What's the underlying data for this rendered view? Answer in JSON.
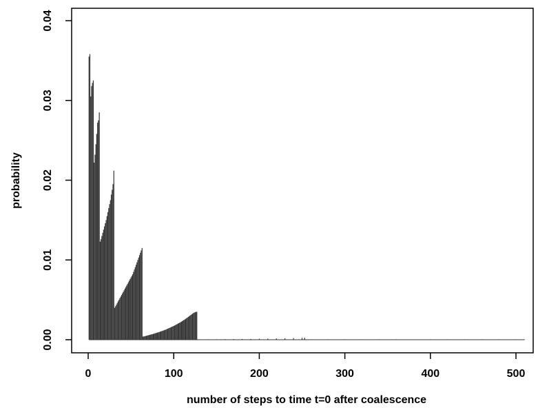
{
  "chart_data": {
    "type": "bar",
    "title": "",
    "xlabel": "number of steps to time t=0 after coalescence",
    "ylabel": "probability",
    "xlim": [
      0,
      510
    ],
    "ylim": [
      0,
      0.04
    ],
    "xticks": [
      0,
      100,
      200,
      300,
      400,
      500
    ],
    "xtick_labels": [
      "0",
      "100",
      "200",
      "300",
      "400",
      "500"
    ],
    "yticks": [
      0,
      0.01,
      0.02,
      0.03,
      0.04
    ],
    "ytick_labels": [
      "0.00",
      "0.01",
      "0.02",
      "0.03",
      "0.04"
    ],
    "grid": false,
    "legend": "none",
    "bar_color": "#333333",
    "series": [
      {
        "x": [
          1,
          2,
          3,
          4,
          5,
          6,
          7,
          8,
          9,
          10,
          11,
          12,
          13,
          14,
          15,
          16,
          17,
          18,
          19,
          20,
          21,
          22,
          23,
          24,
          25,
          26,
          27,
          28,
          29,
          30,
          31,
          32,
          33,
          34,
          35,
          36,
          37,
          38,
          39,
          40,
          41,
          42,
          43,
          44,
          45,
          46,
          47,
          48,
          49,
          50,
          51,
          52,
          53,
          54,
          55,
          56,
          57,
          58,
          59,
          60,
          61,
          62,
          63,
          64,
          65,
          66,
          67,
          68,
          69,
          70,
          71,
          72,
          73,
          74,
          75,
          76,
          77,
          78,
          79,
          80,
          81,
          82,
          83,
          84,
          85,
          86,
          87,
          88,
          89,
          90,
          91,
          92,
          93,
          94,
          95,
          96,
          97,
          98,
          99,
          100,
          101,
          102,
          103,
          104,
          105,
          106,
          107,
          108,
          109,
          110,
          111,
          112,
          113,
          114,
          115,
          116,
          117,
          118,
          119,
          120,
          121,
          122,
          123,
          124,
          125,
          126,
          127,
          130,
          140,
          150,
          160,
          170,
          180,
          190,
          200,
          210,
          220,
          230,
          240,
          250,
          253,
          260,
          280,
          300,
          320,
          340,
          360,
          380,
          400,
          420,
          440,
          460,
          480,
          500,
          510
        ],
        "y": [
          0.0355,
          0.0358,
          0.0305,
          0.0318,
          0.0322,
          0.0325,
          0.0222,
          0.0232,
          0.0245,
          0.0258,
          0.0272,
          0.0275,
          0.0285,
          0.0123,
          0.0126,
          0.013,
          0.0134,
          0.0138,
          0.0142,
          0.0146,
          0.015,
          0.0155,
          0.016,
          0.0165,
          0.017,
          0.0175,
          0.0182,
          0.0188,
          0.0195,
          0.0212,
          0.004,
          0.0042,
          0.0044,
          0.0046,
          0.0048,
          0.005,
          0.0052,
          0.0054,
          0.0056,
          0.0058,
          0.006,
          0.0062,
          0.0064,
          0.0066,
          0.0068,
          0.007,
          0.0072,
          0.0074,
          0.0076,
          0.0078,
          0.008,
          0.0082,
          0.0085,
          0.0088,
          0.0091,
          0.0094,
          0.0097,
          0.01,
          0.0103,
          0.0106,
          0.0109,
          0.0112,
          0.0115,
          0.0004,
          0.0004,
          0.00043,
          0.00046,
          0.00049,
          0.00052,
          0.00055,
          0.00058,
          0.00061,
          0.00064,
          0.00067,
          0.0007,
          0.00073,
          0.00076,
          0.0008,
          0.00083,
          0.00086,
          0.0009,
          0.00093,
          0.00097,
          0.001,
          0.00104,
          0.00108,
          0.00112,
          0.00116,
          0.0012,
          0.00124,
          0.00128,
          0.00133,
          0.00138,
          0.00143,
          0.00148,
          0.00153,
          0.00158,
          0.00163,
          0.00168,
          0.00173,
          0.00178,
          0.00184,
          0.0019,
          0.00196,
          0.00202,
          0.00208,
          0.00214,
          0.0022,
          0.00227,
          0.00234,
          0.00241,
          0.00248,
          0.00255,
          0.00262,
          0.0027,
          0.00278,
          0.00286,
          0.00294,
          0.00302,
          0.0031,
          0.00318,
          0.00326,
          0.00334,
          0.0034,
          0.00345,
          0.0035,
          0.0035,
          5e-05,
          5e-05,
          6e-05,
          7e-05,
          8e-05,
          9e-05,
          0.0001,
          0.00012,
          0.00014,
          0.00016,
          0.00018,
          0.0002,
          0.00023,
          0.00025,
          1e-05,
          1e-05,
          1e-05,
          1e-05,
          1e-05,
          1e-05,
          1e-05,
          1e-05,
          1e-05,
          1e-05,
          1e-05,
          1e-05,
          1e-05,
          1e-05
        ]
      }
    ]
  }
}
